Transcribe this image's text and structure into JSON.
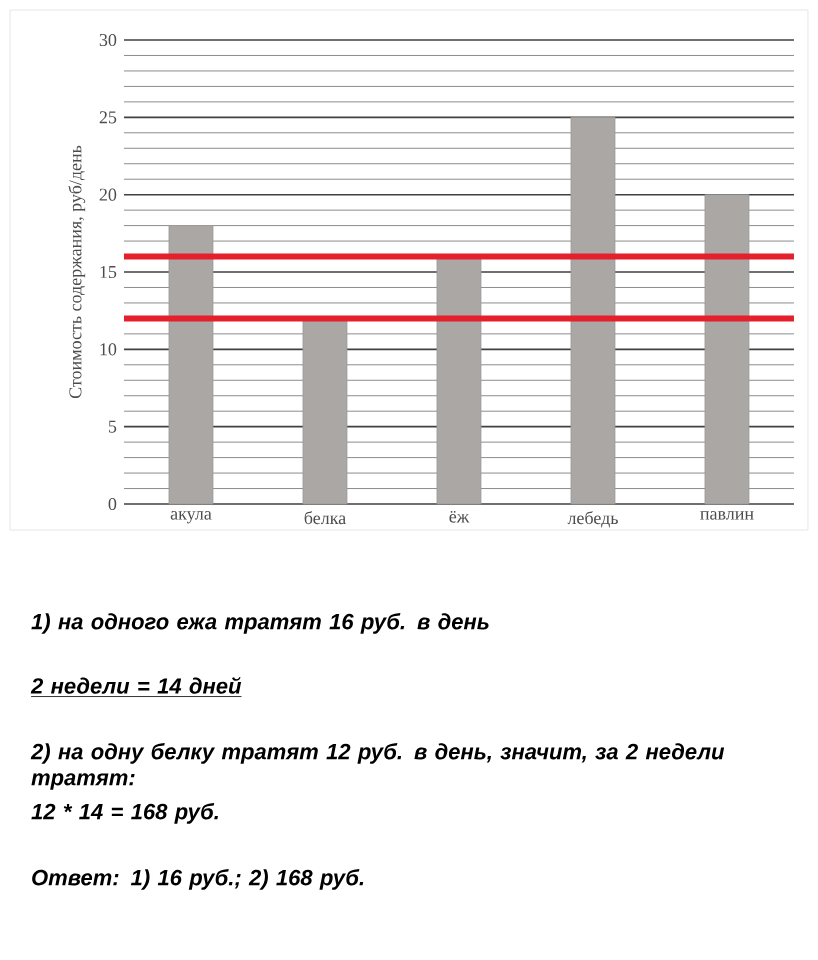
{
  "chart_data": {
    "type": "bar",
    "ylabel": "Стоимость содержания, руб/день",
    "categories": [
      "акула",
      "белка",
      "ёж",
      "лебедь",
      "павлин"
    ],
    "values": [
      18,
      12,
      16,
      25,
      20
    ],
    "color": "#aaa7a4",
    "ylim": [
      0,
      30
    ],
    "yticks": [
      0,
      5,
      10,
      15,
      20,
      25,
      30
    ],
    "grid": "y",
    "ref_lines": [
      {
        "axis": "y",
        "value": 16,
        "color": "#e3202c"
      },
      {
        "axis": "y",
        "value": 12,
        "color": "#e3202c"
      }
    ],
    "annotations": [
      "1) на одного ежа тратят 16 руб. в день",
      "2 недели = 14 дней",
      "2) на одну белку тратят 12 руб. в день, значит, за 2 недели тратят:",
      "12 * 14 = 168 руб.",
      "Ответ: 1) 16 руб.;  2) 168 руб."
    ]
  }
}
